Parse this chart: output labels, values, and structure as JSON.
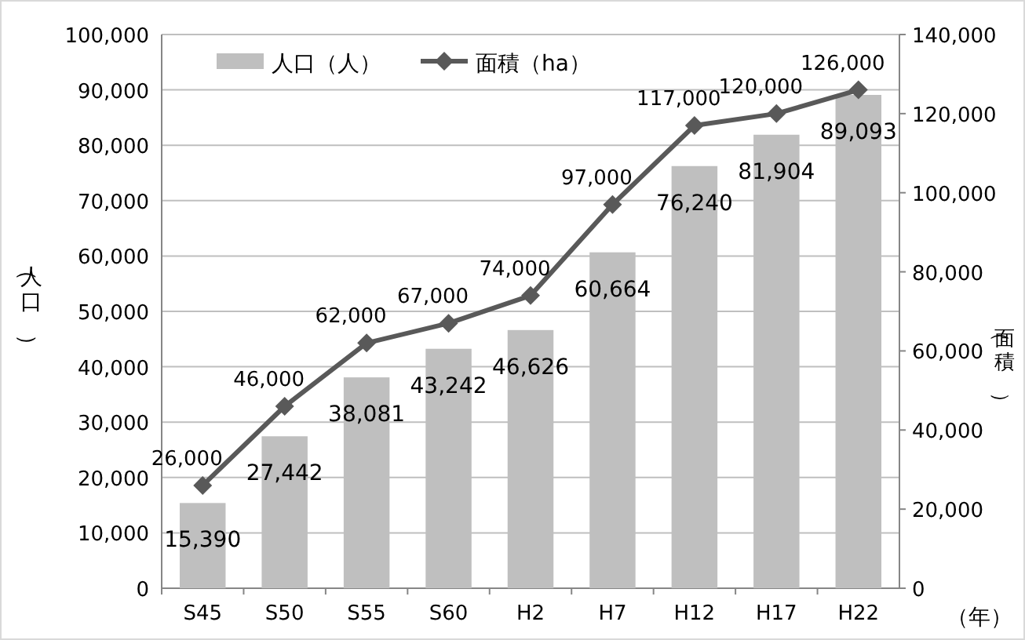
{
  "chart_data": {
    "type": "bar",
    "categories": [
      "S45",
      "S50",
      "S55",
      "S60",
      "H2",
      "H7",
      "H12",
      "H17",
      "H22"
    ],
    "series": [
      {
        "name": "人口（人）",
        "type": "bar",
        "color": "#bfbfbf",
        "values": [
          15390,
          27442,
          38081,
          43242,
          46626,
          60664,
          76240,
          81904,
          89093
        ],
        "value_labels": [
          "15,390",
          "27,442",
          "38,081",
          "43,242",
          "46,626",
          "60,664",
          "76,240",
          "81,904",
          "89,093"
        ]
      },
      {
        "name": "面積（ha）",
        "type": "line",
        "axis": "y2",
        "color": "#595959",
        "marker": "diamond",
        "values": [
          26000,
          46000,
          62000,
          67000,
          74000,
          97000,
          117000,
          120000,
          126000
        ],
        "value_labels": [
          "26,000",
          "46,000",
          "62,000",
          "67,000",
          "74,000",
          "97,000",
          "117,000",
          "120,000",
          "126,000"
        ]
      }
    ],
    "ylim": [
      0,
      100000
    ],
    "yticks": [
      {
        "value": 0,
        "label": "0"
      },
      {
        "value": 10000,
        "label": "10,000"
      },
      {
        "value": 20000,
        "label": "20,000"
      },
      {
        "value": 30000,
        "label": "30,000"
      },
      {
        "value": 40000,
        "label": "40,000"
      },
      {
        "value": 50000,
        "label": "50,000"
      },
      {
        "value": 60000,
        "label": "60,000"
      },
      {
        "value": 70000,
        "label": "70,000"
      },
      {
        "value": 80000,
        "label": "80,000"
      },
      {
        "value": 90000,
        "label": "90,000"
      },
      {
        "value": 100000,
        "label": "100,000"
      }
    ],
    "y2lim": [
      0,
      140000
    ],
    "y2ticks": [
      {
        "value": 0,
        "label": "0"
      },
      {
        "value": 20000,
        "label": "20,000"
      },
      {
        "value": 40000,
        "label": "40,000"
      },
      {
        "value": 60000,
        "label": "60,000"
      },
      {
        "value": 80000,
        "label": "80,000"
      },
      {
        "value": 100000,
        "label": "100,000"
      },
      {
        "value": 120000,
        "label": "120,000"
      },
      {
        "value": 140000,
        "label": "140,000"
      }
    ],
    "ylabel": "（人口）",
    "y2label": "（面積）",
    "xlabel": "（年）",
    "grid": "y",
    "legend": "top left"
  }
}
